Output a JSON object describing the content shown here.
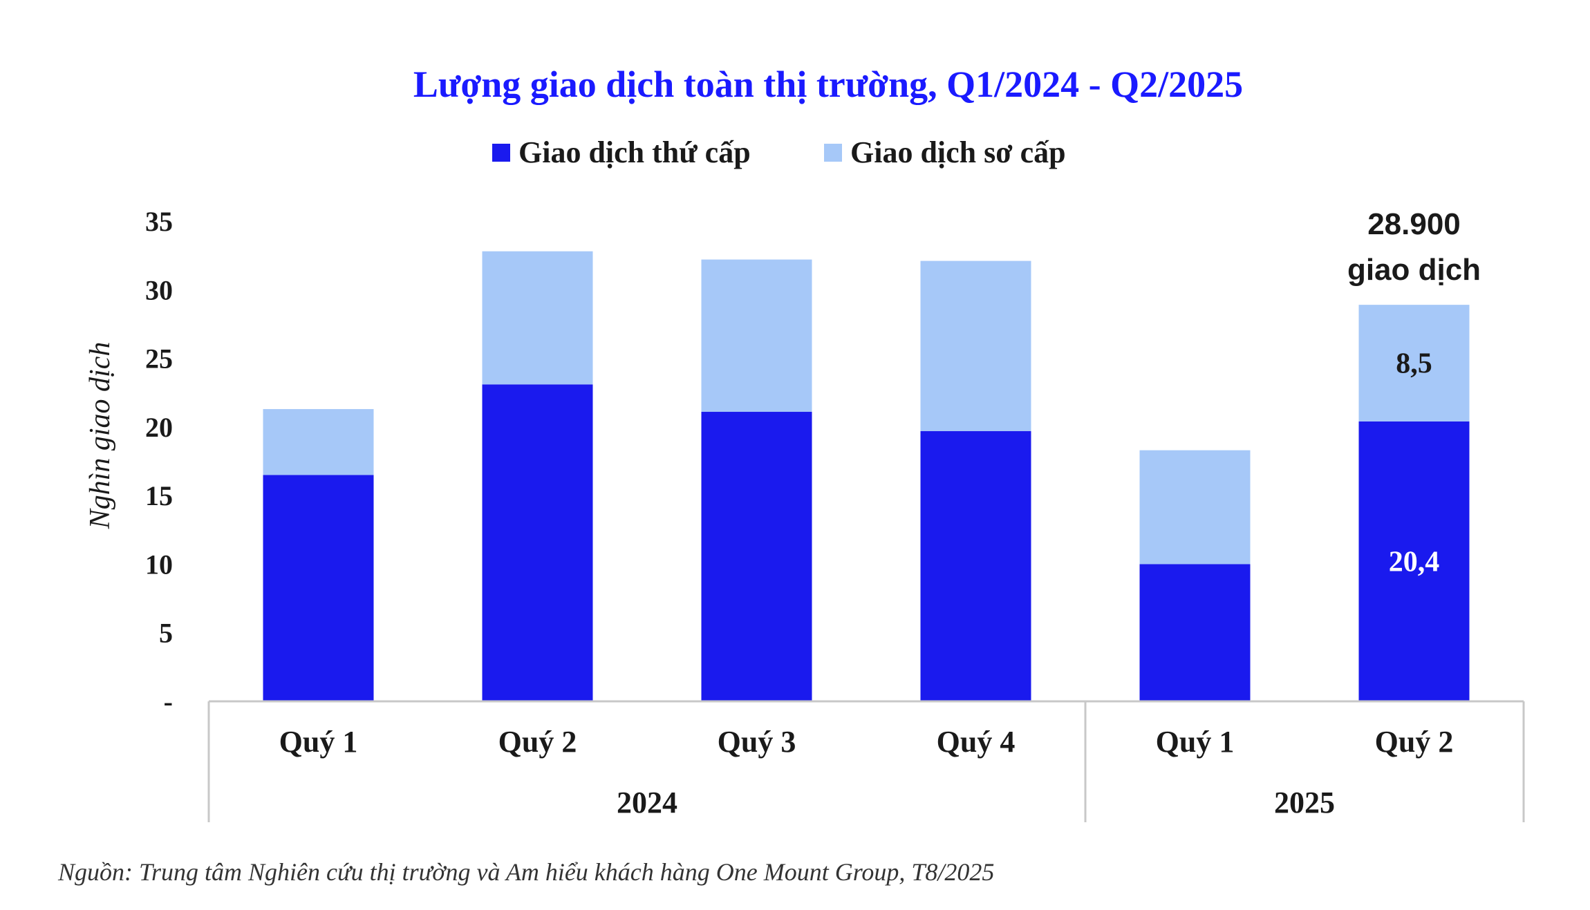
{
  "chart_data": {
    "type": "bar",
    "stacked": true,
    "title": "Lượng giao dịch toàn thị trường, Q1/2024 - Q2/2025",
    "ylabel": "Nghìn giao dịch",
    "ylim": [
      0,
      35
    ],
    "yticks": [
      "-",
      "5",
      "10",
      "15",
      "20",
      "25",
      "30",
      "35"
    ],
    "categories": [
      "Quý 1",
      "Quý 2",
      "Quý 3",
      "Quý 4",
      "Quý 1",
      "Quý 2"
    ],
    "groups": [
      {
        "label": "2024",
        "count": 4
      },
      {
        "label": "2025",
        "count": 2
      }
    ],
    "series": [
      {
        "name": "Giao dịch thứ cấp",
        "color": "#1a1aee",
        "values": [
          16.5,
          23.1,
          21.1,
          19.7,
          10.0,
          20.4
        ]
      },
      {
        "name": "Giao dịch sơ cấp",
        "color": "#a6c8f8",
        "values": [
          4.8,
          9.7,
          11.1,
          12.4,
          8.3,
          8.5
        ]
      }
    ],
    "legend_position": "top-center",
    "data_labels": [
      {
        "index": 5,
        "series": 0,
        "text": "20,4",
        "color": "#ffffff"
      },
      {
        "index": 5,
        "series": 1,
        "text": "8,5",
        "color": "#1a1a1a"
      }
    ],
    "annotation": {
      "index": 5,
      "lines": [
        "28.900",
        "giao dịch"
      ]
    },
    "source": "Nguồn: Trung tâm Nghiên cứu thị trường và Am hiểu khách hàng One Mount Group, T8/2025"
  }
}
